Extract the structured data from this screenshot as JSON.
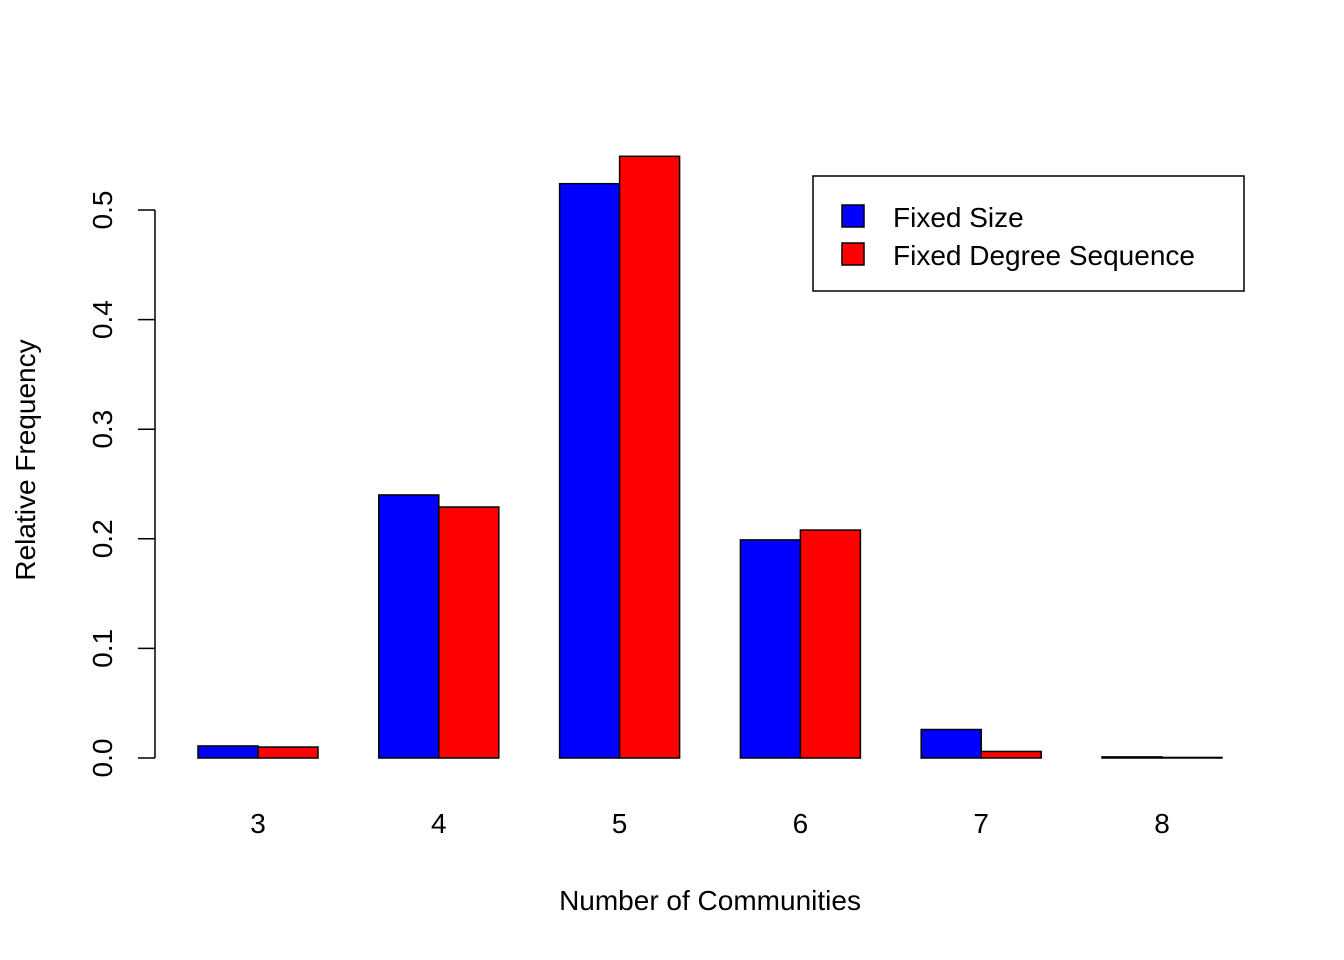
{
  "chart_data": {
    "type": "bar",
    "title": "",
    "xlabel": "Number of Communities",
    "ylabel": "Relative Frequency",
    "categories": [
      "3",
      "4",
      "5",
      "6",
      "7",
      "8"
    ],
    "series": [
      {
        "name": "Fixed Size",
        "color": "#0000ff",
        "values": [
          0.011,
          0.24,
          0.524,
          0.199,
          0.026,
          0.001
        ]
      },
      {
        "name": "Fixed Degree Sequence",
        "color": "#ff0000",
        "values": [
          0.01,
          0.229,
          0.549,
          0.208,
          0.006,
          0.0005
        ]
      }
    ],
    "yticks": [
      0.0,
      0.1,
      0.2,
      0.3,
      0.4,
      0.5
    ],
    "ytick_labels": [
      "0.0",
      "0.1",
      "0.2",
      "0.3",
      "0.4",
      "0.5"
    ],
    "ylim": [
      0,
      0.5
    ],
    "grid": false,
    "legend_position": "top-right"
  }
}
